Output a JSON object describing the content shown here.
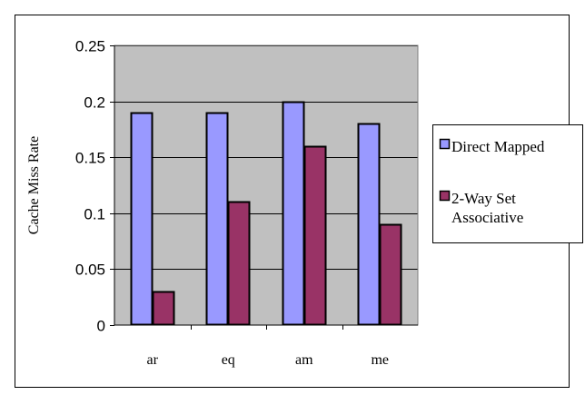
{
  "chart_data": {
    "type": "bar",
    "title": "",
    "xlabel": "",
    "ylabel": "Cache Miss Rate",
    "ylim": [
      0,
      0.25
    ],
    "yticks": [
      "0",
      "0.05",
      "0.1",
      "0.15",
      "0.2",
      "0.25"
    ],
    "grid": true,
    "legend_position": "right",
    "categories": [
      "ar",
      "eq",
      "am",
      "me"
    ],
    "series": [
      {
        "name": "Direct Mapped",
        "values": [
          0.19,
          0.19,
          0.2,
          0.18
        ],
        "color": "#9999ff"
      },
      {
        "name": "2-Way Set Associative",
        "values": [
          0.03,
          0.11,
          0.16,
          0.09
        ],
        "color": "#993366"
      }
    ],
    "legend": {
      "items": [
        {
          "lines": [
            "Direct Mapped"
          ]
        },
        {
          "lines": [
            "2-Way Set",
            "Associative"
          ]
        }
      ]
    },
    "colors": {
      "plot_background": "#c0c0c0",
      "gridline": "#000000",
      "border": "#000000"
    }
  }
}
